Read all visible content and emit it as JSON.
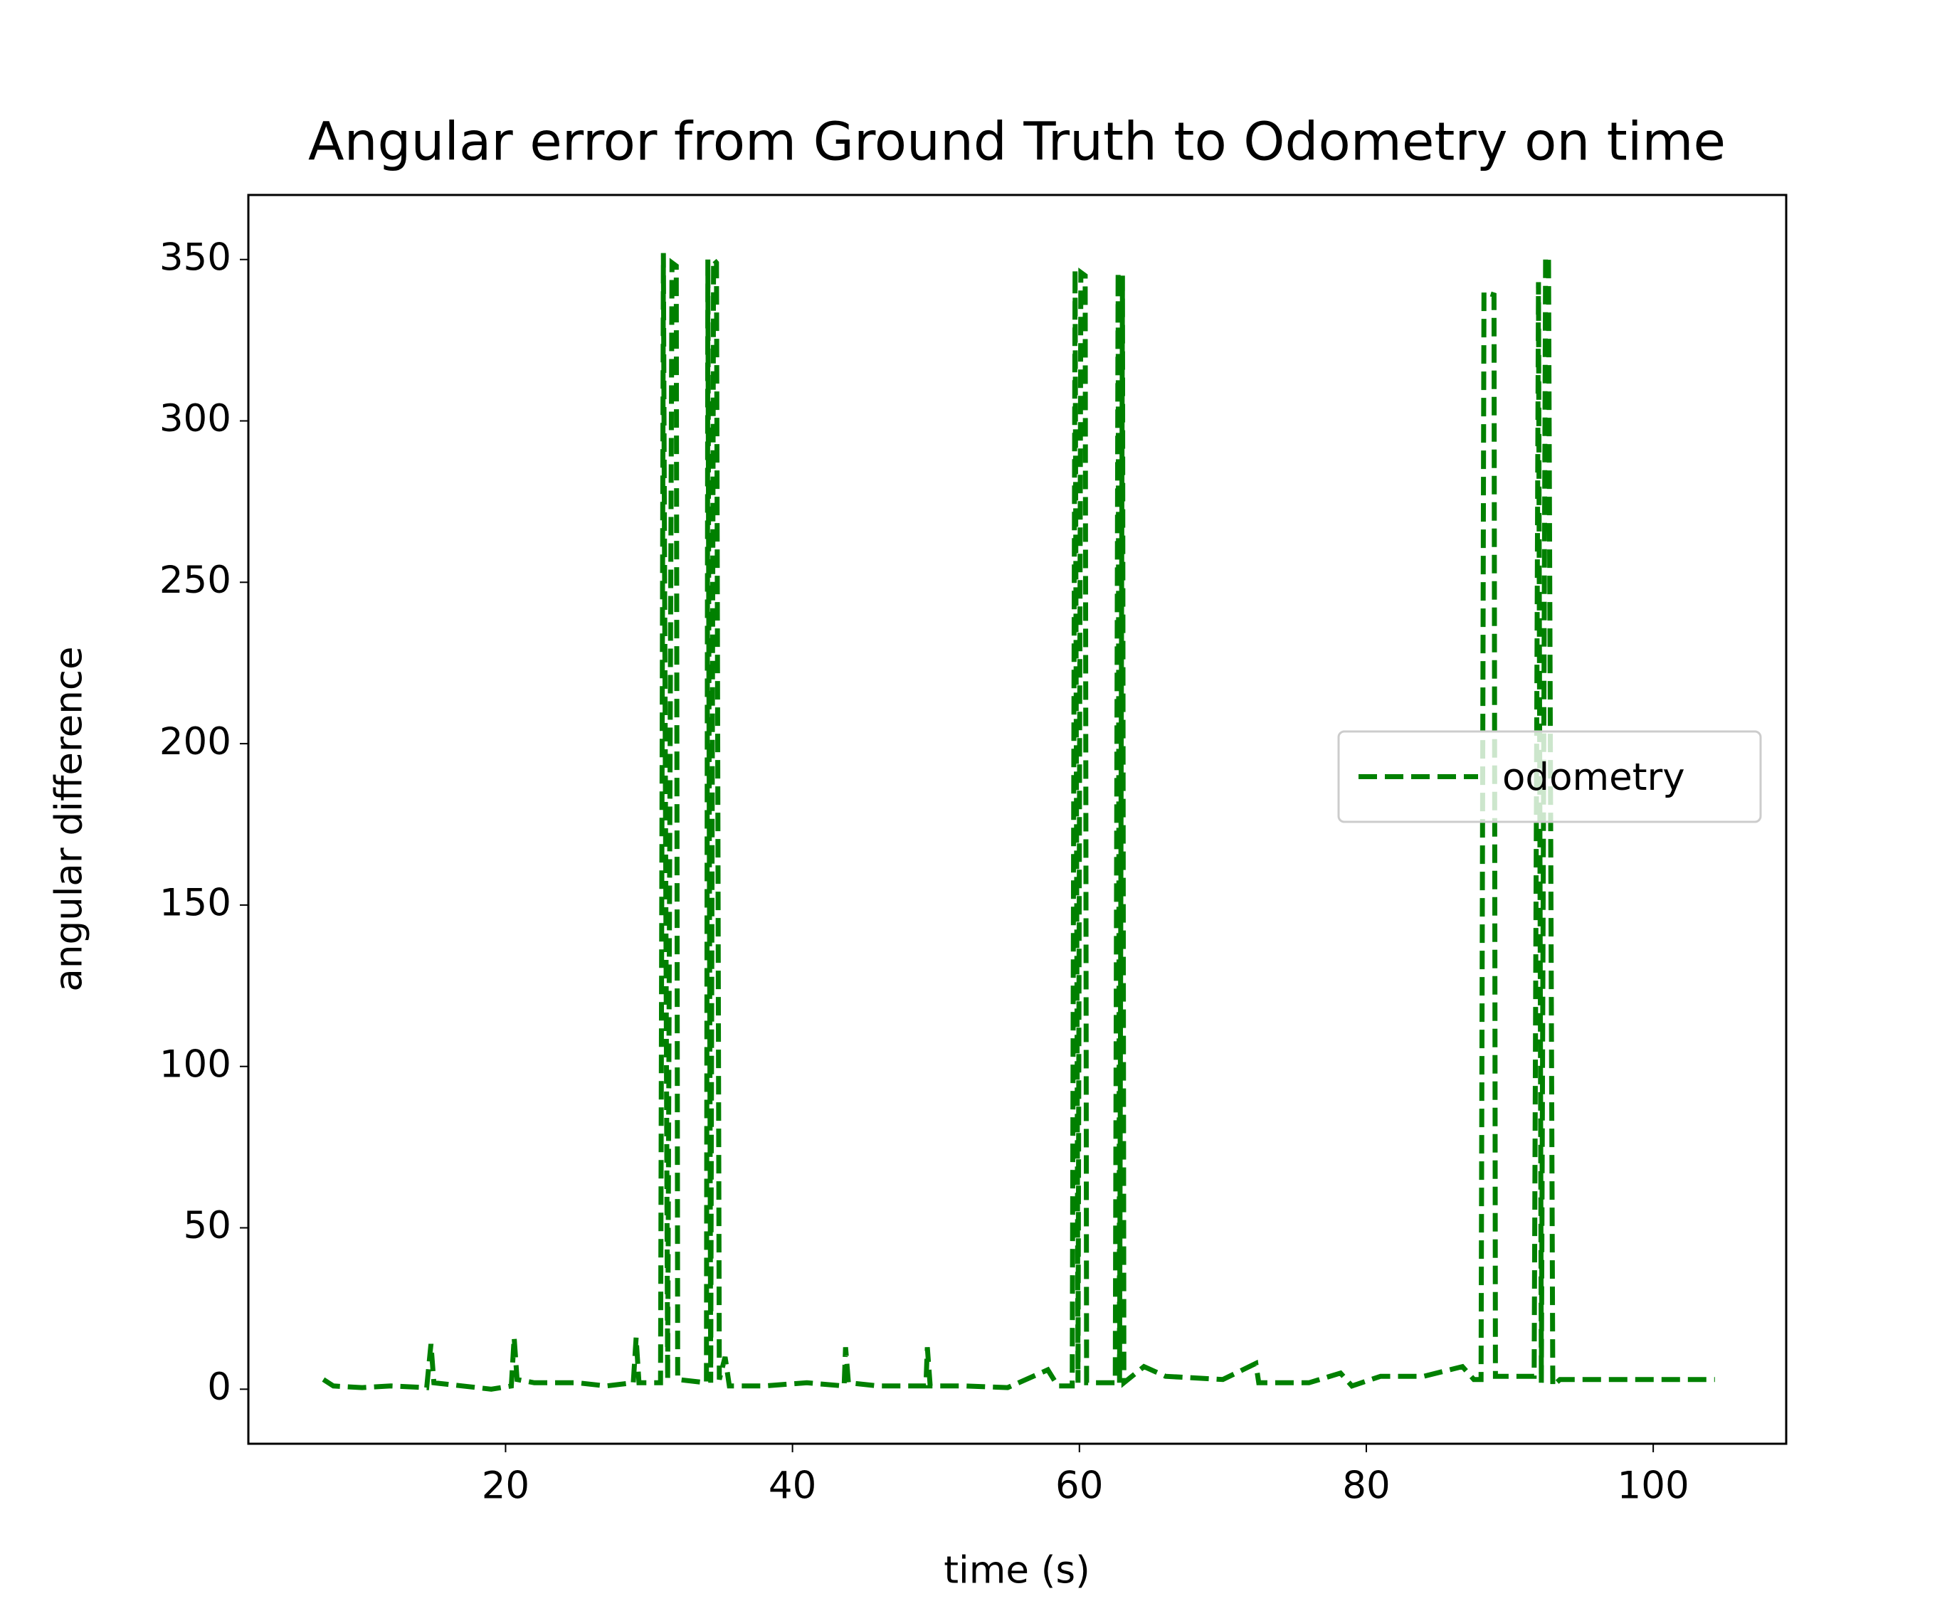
{
  "chart_data": {
    "type": "line",
    "title": "Angular error from Ground Truth to Odometry on time",
    "xlabel": "time (s)",
    "ylabel": "angular difference",
    "x": [
      7.3,
      8,
      10,
      12,
      14.5,
      14.8,
      15,
      17,
      19,
      20.4,
      20.6,
      20.8,
      22,
      25,
      27,
      28.9,
      29.1,
      29.3,
      30.8,
      31,
      31.3,
      31.6,
      31.9,
      32,
      34,
      34.1,
      34.3,
      34.5,
      34.7,
      34.9,
      35.3,
      35.6,
      38,
      41,
      43.6,
      43.7,
      43.9,
      46,
      49.3,
      49.4,
      49.6,
      52,
      55,
      57.8,
      58.5,
      59.5,
      59.7,
      59.9,
      60.1,
      60.4,
      60.5,
      62.5,
      62.7,
      62.8,
      63,
      63.1,
      64.5,
      66,
      70,
      72.3,
      72.5,
      76,
      78.2,
      79,
      81,
      84,
      86.7,
      87.5,
      88,
      88.2,
      88.9,
      89,
      91.7,
      92,
      92.2,
      92.5,
      92.7,
      93,
      93.5,
      104.3
    ],
    "series": [
      {
        "name": "odometry",
        "color": "#008000",
        "linestyle": "dashed",
        "values": [
          3,
          1,
          0.5,
          1,
          0.5,
          14,
          2,
          1,
          0,
          1,
          16,
          3,
          2,
          2,
          1,
          2,
          16,
          2,
          2,
          352,
          3,
          349,
          348,
          3,
          2,
          350,
          2,
          350,
          349,
          3,
          10,
          1,
          1,
          2,
          1,
          13,
          2,
          1,
          1,
          13,
          1,
          1,
          0.5,
          6,
          1,
          1,
          347,
          2,
          346,
          345,
          2,
          2,
          346,
          2,
          345,
          2,
          7,
          4,
          3,
          8,
          2,
          2,
          5,
          1,
          4,
          4,
          7,
          3,
          3,
          340,
          339,
          4,
          4,
          343,
          2,
          351,
          350,
          1,
          3,
          3
        ]
      }
    ],
    "xlim": [
      2.07,
      109.27
    ],
    "ylim": [
      -16.9,
      370
    ],
    "xticks": [
      20,
      40,
      60,
      80,
      100
    ],
    "yticks": [
      0,
      50,
      100,
      150,
      200,
      250,
      300,
      350
    ],
    "legend": "center right"
  }
}
